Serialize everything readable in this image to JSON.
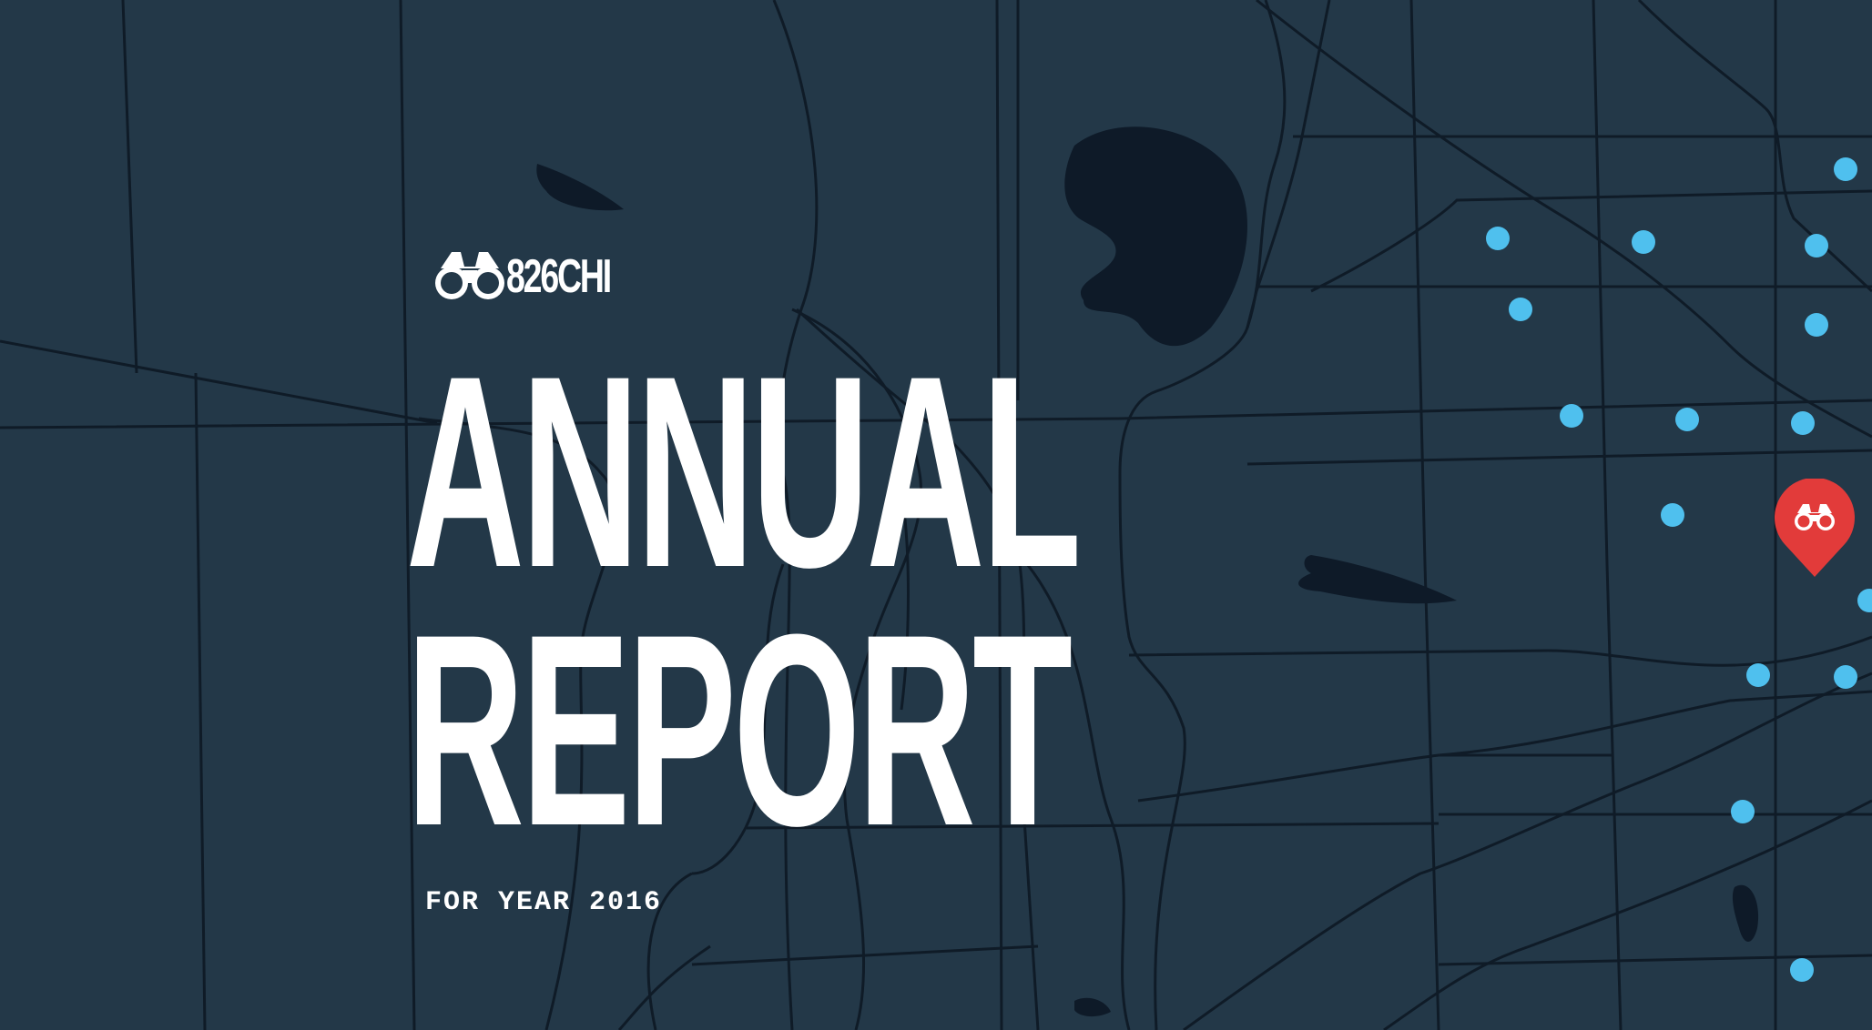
{
  "brand": {
    "name": "826CHI",
    "icon": "binoculars-icon"
  },
  "hero": {
    "title_line_1": "ANNUAL",
    "title_line_2": "REPORT",
    "subtitle": "FOR YEAR 2016"
  },
  "map": {
    "background_color": "#233848",
    "road_color": "#0f1b27",
    "water_color": "#0e1a28",
    "dot_color": "#4fc0ee",
    "marker_color": "#e23b3a",
    "marker_icon": "binoculars-icon"
  }
}
